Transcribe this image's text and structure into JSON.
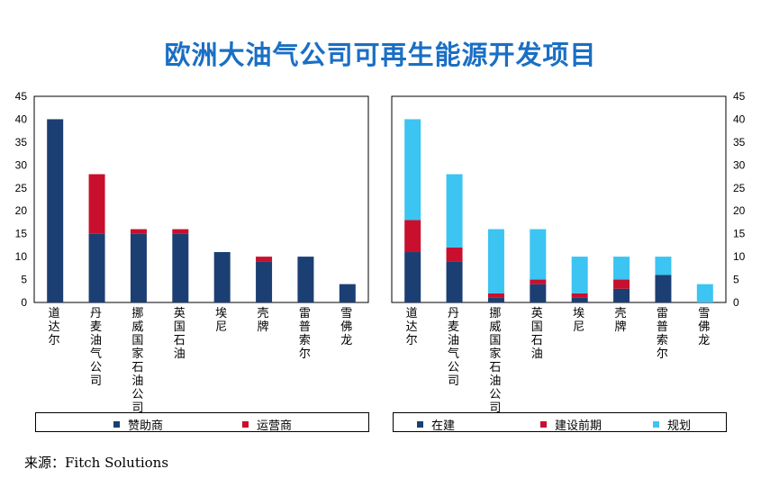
{
  "title": "欧洲大油气公司可再生能源开发项目",
  "source": "来源：Fitch Solutions",
  "colors": {
    "navy": "#1c3f73",
    "red": "#c8102e",
    "cyan": "#3cc4f2"
  },
  "chart_data": [
    {
      "type": "bar",
      "stacked": true,
      "categories": [
        "道达尔",
        "丹麦油气公司",
        "挪威国家石油公司",
        "英国石油",
        "埃尼",
        "壳牌",
        "雷普索尔",
        "雪佛龙"
      ],
      "series": [
        {
          "name": "赞助商",
          "color": "#1c3f73",
          "values": [
            40,
            15,
            15,
            15,
            11,
            9,
            10,
            4
          ]
        },
        {
          "name": "运营商",
          "color": "#c8102e",
          "values": [
            0,
            13,
            1,
            1,
            0,
            1,
            0,
            0
          ]
        }
      ],
      "ylim": [
        0,
        45
      ],
      "yticks": [
        0,
        5,
        10,
        15,
        20,
        25,
        30,
        35,
        40,
        45
      ],
      "axis_side": "left",
      "legend": "bottom"
    },
    {
      "type": "bar",
      "stacked": true,
      "categories": [
        "道达尔",
        "丹麦油气公司",
        "挪威国家石油公司",
        "英国石油",
        "埃尼",
        "壳牌",
        "雷普索尔",
        "雪佛龙"
      ],
      "series": [
        {
          "name": "在建",
          "color": "#1c3f73",
          "values": [
            11,
            9,
            1,
            4,
            1,
            3,
            6,
            0
          ]
        },
        {
          "name": "建设前期",
          "color": "#c8102e",
          "values": [
            7,
            3,
            1,
            1,
            1,
            2,
            0,
            0
          ]
        },
        {
          "name": "规划",
          "color": "#3cc4f2",
          "values": [
            22,
            16,
            14,
            11,
            8,
            5,
            4,
            4
          ]
        }
      ],
      "ylim": [
        0,
        45
      ],
      "yticks": [
        0,
        5,
        10,
        15,
        20,
        25,
        30,
        35,
        40,
        45
      ],
      "axis_side": "right",
      "legend": "bottom"
    }
  ]
}
